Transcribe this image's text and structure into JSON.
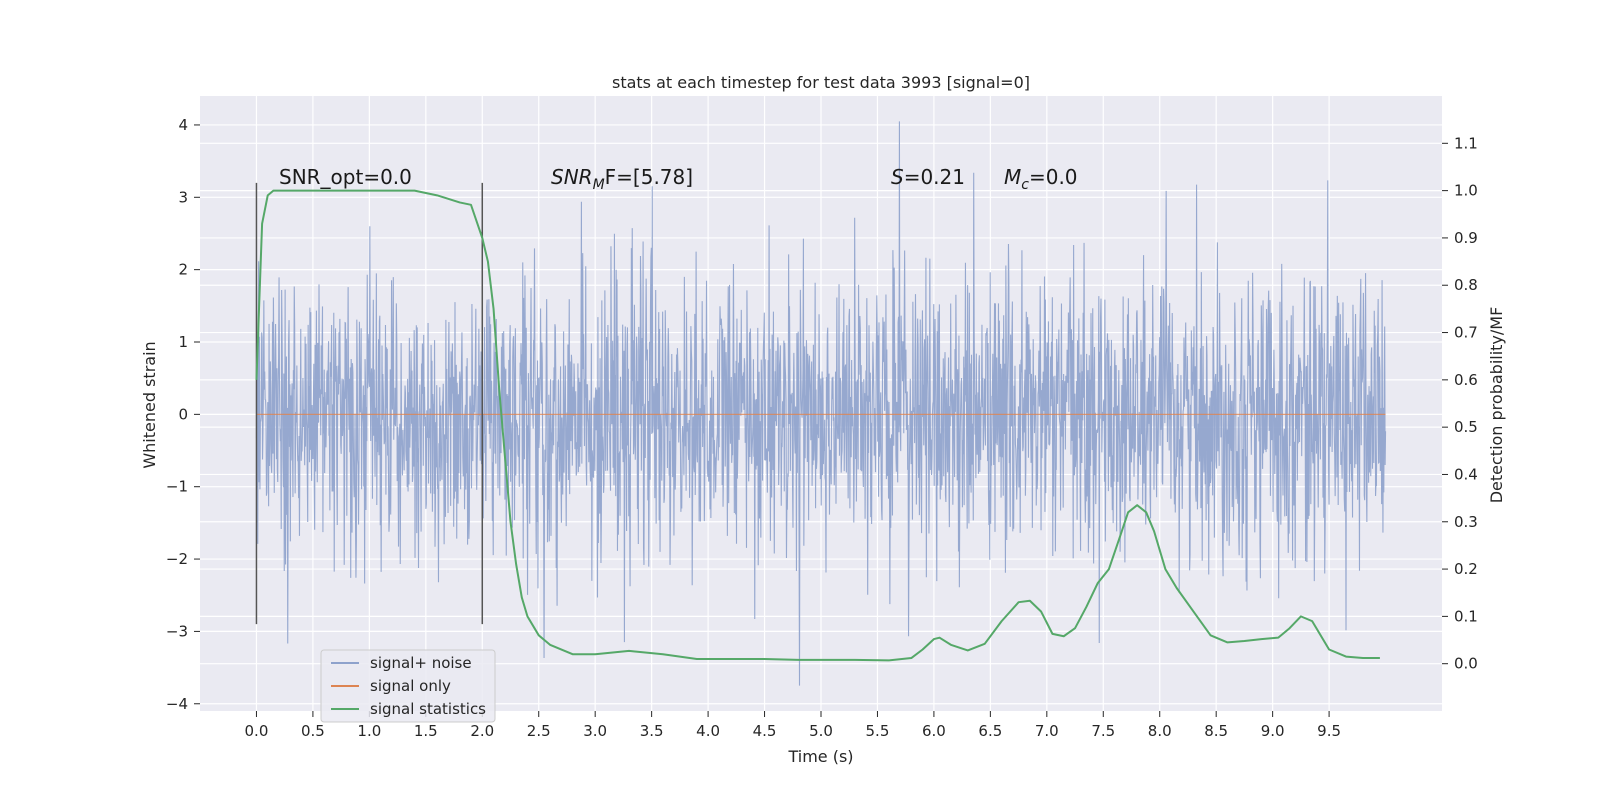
{
  "chart_data": {
    "type": "line",
    "title": "stats at each timestep for test data 3993 [signal=0]",
    "xlabel": "Time (s)",
    "ylabel": "Whitened strain",
    "y2label": "Detection probability/MF",
    "xlim": [
      -0.5,
      10.5
    ],
    "ylim": [
      -4.1,
      4.4
    ],
    "y2lim": [
      -0.1,
      1.2
    ],
    "x_ticks": [
      "0.0",
      "0.5",
      "1.0",
      "1.5",
      "2.0",
      "2.5",
      "3.0",
      "3.5",
      "4.0",
      "4.5",
      "5.0",
      "5.5",
      "6.0",
      "6.5",
      "7.0",
      "7.5",
      "8.0",
      "8.5",
      "9.0",
      "9.5"
    ],
    "y_ticks": [
      "4",
      "3",
      "2",
      "1",
      "0",
      "−1",
      "−2",
      "−3",
      "−4"
    ],
    "y2_ticks": [
      "1.1",
      "1.0",
      "0.9",
      "0.8",
      "0.7",
      "0.6",
      "0.5",
      "0.4",
      "0.3",
      "0.2",
      "0.1",
      "0.0"
    ],
    "grid": true,
    "legend_position": "lower-left",
    "annotations": {
      "snr_opt": "SNR_opt=0.0",
      "snr_mf_main": "SNR",
      "snr_mf_sub": "M",
      "snr_mf_rest": "F=[5.78]",
      "s_symbol": "S",
      "s_value": "=0.21",
      "mc_symbol": "M",
      "mc_sub": "c",
      "mc_value": "=0.0"
    },
    "window_markers_x": [
      0.0,
      2.0
    ],
    "window_marker_range": [
      -2.9,
      3.2
    ],
    "series": [
      {
        "name": "signal+ noise",
        "color": "#8ea2cc",
        "x_range": [
          0.0,
          10.0
        ],
        "typical_envelope": [
          -1.8,
          1.8
        ],
        "min": -3.75,
        "max": 4.05
      },
      {
        "name": "signal only",
        "color": "#dd8452",
        "x": [
          0.0,
          10.0
        ],
        "values": [
          0.0,
          0.0
        ]
      },
      {
        "name": "signal statistics",
        "color": "#55a868",
        "axis": "right",
        "x": [
          0.0,
          0.05,
          0.1,
          0.15,
          0.25,
          0.5,
          1.0,
          1.4,
          1.6,
          1.8,
          1.9,
          2.0,
          2.05,
          2.1,
          2.15,
          2.2,
          2.25,
          2.3,
          2.35,
          2.4,
          2.5,
          2.6,
          2.8,
          3.0,
          3.3,
          3.6,
          3.9,
          4.2,
          4.5,
          4.8,
          5.0,
          5.3,
          5.6,
          5.8,
          5.9,
          6.0,
          6.05,
          6.15,
          6.3,
          6.45,
          6.6,
          6.75,
          6.85,
          6.95,
          7.05,
          7.15,
          7.25,
          7.35,
          7.45,
          7.55,
          7.65,
          7.72,
          7.8,
          7.88,
          7.95,
          8.05,
          8.15,
          8.3,
          8.45,
          8.6,
          8.75,
          8.9,
          9.05,
          9.15,
          9.25,
          9.35,
          9.5,
          9.65,
          9.8,
          9.95
        ],
        "values": [
          0.6,
          0.93,
          0.99,
          1.0,
          1.0,
          1.0,
          1.0,
          1.0,
          0.99,
          0.975,
          0.97,
          0.9,
          0.85,
          0.75,
          0.58,
          0.44,
          0.3,
          0.21,
          0.14,
          0.1,
          0.06,
          0.04,
          0.02,
          0.02,
          0.027,
          0.02,
          0.01,
          0.01,
          0.01,
          0.008,
          0.008,
          0.008,
          0.007,
          0.012,
          0.03,
          0.052,
          0.055,
          0.04,
          0.028,
          0.042,
          0.09,
          0.13,
          0.133,
          0.11,
          0.063,
          0.058,
          0.075,
          0.12,
          0.17,
          0.2,
          0.27,
          0.32,
          0.335,
          0.32,
          0.28,
          0.2,
          0.16,
          0.11,
          0.06,
          0.045,
          0.048,
          0.052,
          0.055,
          0.075,
          0.1,
          0.09,
          0.03,
          0.015,
          0.012,
          0.012
        ]
      }
    ]
  }
}
